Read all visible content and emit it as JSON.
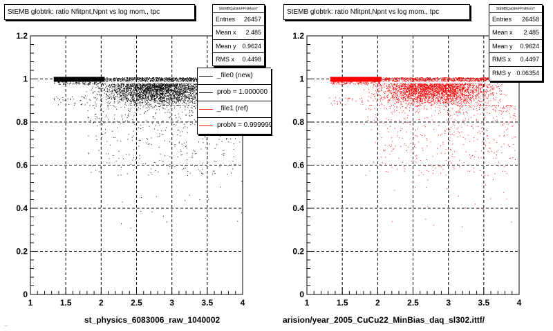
{
  "chart_data": [
    {
      "type": "scatter",
      "title": "StEMB globtrk: ratio Nfitpnt,Npnt vs log mom., tpc",
      "xlabel": "st_physics_6083006_raw_1040002",
      "ylabel": "",
      "xlim": [
        1,
        4
      ],
      "ylim": [
        0,
        1.2
      ],
      "xticks": [
        "1",
        "1.5",
        "2",
        "2.5",
        "3",
        "3.5",
        "4"
      ],
      "yticks": [
        "0",
        "0.2",
        "0.4",
        "0.6",
        "0.8",
        "1",
        "1.2"
      ],
      "grid": true,
      "marker_color": "#000000",
      "x_range_populated": [
        1.3,
        4.0
      ],
      "bands": [
        {
          "y": 1.0,
          "x_from": 1.33,
          "x_to": 4.0,
          "density": "saturated"
        },
        {
          "y_from": 0.88,
          "y_to": 0.98,
          "x_from": 1.3,
          "x_to": 4.0,
          "density": "dense, peak near x=2.8"
        },
        {
          "y_from": 0.55,
          "y_to": 0.88,
          "x_from": 1.8,
          "x_to": 4.0,
          "density": "sparse"
        }
      ],
      "stats": {
        "header": "StEMBQaGtrkFPntMomT",
        "rows": [
          {
            "label": "Entries",
            "value": "26457"
          },
          {
            "label": "Mean x",
            "value": "2.485"
          },
          {
            "label": "Mean y",
            "value": "0.9624"
          },
          {
            "label": "RMS x",
            "value": "0.4498"
          }
        ]
      },
      "legend": {
        "placement": "top-right",
        "entries": [
          {
            "label": "_file0 (new)",
            "color": "#000000"
          },
          {
            "label": "prob = 1.000000",
            "color": "#000000"
          },
          {
            "label": "_file1 (ref)",
            "color": "#ff0000"
          },
          {
            "label": "probN = 0.999999",
            "color": "#ff0000"
          }
        ]
      }
    },
    {
      "type": "scatter",
      "title": "StEMB globtrk: ratio Nfitpnt,Npnt vs log mom., tpc",
      "xlabel": "arision/year_2005_CuCu22_MinBias_daq_sl302.ittf/",
      "ylabel": "",
      "xlim": [
        1,
        4
      ],
      "ylim": [
        0,
        1.2
      ],
      "xticks": [
        "1",
        "1.5",
        "2",
        "2.5",
        "3",
        "3.5",
        "4"
      ],
      "yticks": [
        "0",
        "0.2",
        "0.4",
        "0.6",
        "0.8",
        "1",
        "1.2"
      ],
      "grid": true,
      "marker_color": "#ff0000",
      "x_range_populated": [
        1.3,
        4.0
      ],
      "bands": [
        {
          "y": 1.0,
          "x_from": 1.33,
          "x_to": 4.0,
          "density": "saturated"
        },
        {
          "y_from": 0.88,
          "y_to": 0.98,
          "x_from": 1.3,
          "x_to": 4.0,
          "density": "dense, peak near x=2.8"
        },
        {
          "y_from": 0.55,
          "y_to": 0.88,
          "x_from": 1.8,
          "x_to": 4.0,
          "density": "sparse"
        }
      ],
      "stats": {
        "header": "StEMBQaGtrkFPntMomT",
        "rows": [
          {
            "label": "Entries",
            "value": "26458"
          },
          {
            "label": "Mean x",
            "value": "2.485"
          },
          {
            "label": "Mean y",
            "value": "0.9624"
          },
          {
            "label": "RMS x",
            "value": "0.4497"
          },
          {
            "label": "RMS y",
            "value": "0.06354"
          }
        ]
      }
    }
  ],
  "footer": "..."
}
